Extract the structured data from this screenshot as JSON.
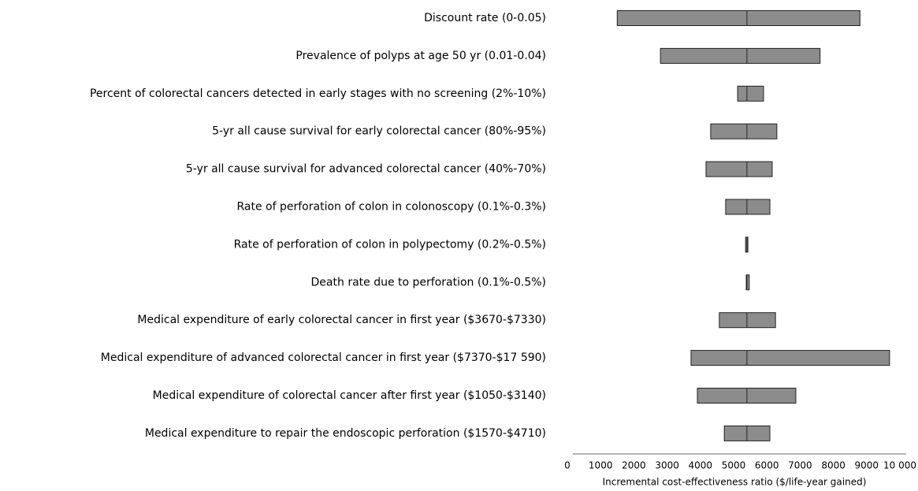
{
  "chart_data": {
    "type": "tornado",
    "categories": [
      "Discount rate (0-0.05)",
      "Prevalence of polyps at age 50 yr (0.01-0.04)",
      "Percent of colorectal cancers detected in early stages with no screening (2%-10%)",
      "5-yr all cause survival for early colorectal cancer (80%-95%)",
      "5-yr all cause survival for advanced colorectal cancer (40%-70%)",
      "Rate of perforation of colon in colonoscopy (0.1%-0.3%)",
      "Rate of perforation of colon in polypectomy (0.2%-0.5%)",
      "Death rate due to perforation (0.1%-0.5%)",
      "Medical expenditure of early colorectal cancer in first year ($3670-$7330)",
      "Medical expenditure of advanced colorectal cancer in first year ($7370-$17 590)",
      "Medical expenditure of colorectal cancer after first year ($1050-$3140)",
      "Medical expenditure to repair the endoscopic perforation ($1570-$4710)"
    ],
    "low": [
      1500,
      2800,
      5120,
      4310,
      4170,
      4760,
      5360,
      5380,
      4570,
      3720,
      3910,
      4720
    ],
    "high": [
      8800,
      7600,
      5900,
      6300,
      6160,
      6090,
      5430,
      5470,
      6260,
      9690,
      6870,
      6090
    ],
    "base": 5400,
    "color": "#8c8c8c",
    "xlabel": "Incremental cost-effectiveness ratio ($/life-year gained)",
    "xlim": [
      0,
      10000
    ],
    "xticks": [
      0,
      1000,
      2000,
      3000,
      4000,
      5000,
      6000,
      7000,
      8000,
      9000,
      {
        "value": 10000,
        "label": "10 000"
      }
    ]
  }
}
